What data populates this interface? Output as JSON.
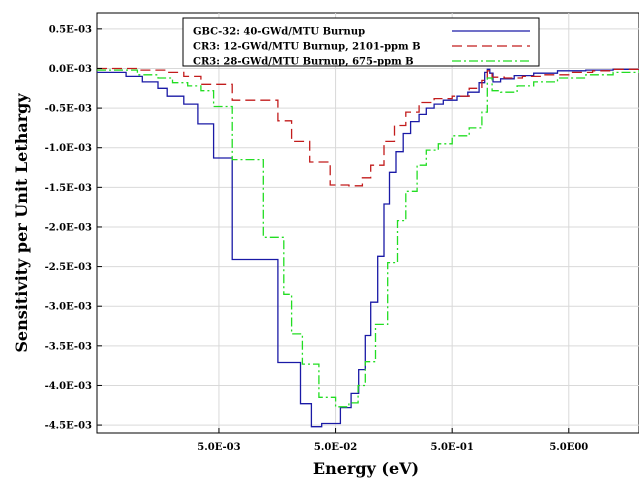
{
  "chart_data": {
    "type": "line",
    "title": "",
    "xlabel": "Energy (eV)",
    "ylabel": "Sensitivity per Unit Lethargy",
    "x_scale": "log",
    "xlim": [
      0.00045,
      20
    ],
    "ylim": [
      -0.0046,
      0.0007
    ],
    "grid": true,
    "legend_position": "top-center",
    "x_ticks": [
      {
        "value": 0.005,
        "label": "5.0E-03"
      },
      {
        "value": 0.05,
        "label": "5.0E-02"
      },
      {
        "value": 0.5,
        "label": "5.0E-01"
      },
      {
        "value": 5,
        "label": "5.0E00"
      }
    ],
    "y_ticks": [
      {
        "value": 0.0005,
        "label": "0.5E-03"
      },
      {
        "value": 0.0,
        "label": "0.0E-03"
      },
      {
        "value": -0.0005,
        "label": "-0.5E-03"
      },
      {
        "value": -0.001,
        "label": "-1.0E-03"
      },
      {
        "value": -0.0015,
        "label": "-1.5E-03"
      },
      {
        "value": -0.002,
        "label": "-2.0E-03"
      },
      {
        "value": -0.0025,
        "label": "-2.5E-03"
      },
      {
        "value": -0.003,
        "label": "-3.0E-03"
      },
      {
        "value": -0.0035,
        "label": "-3.5E-03"
      },
      {
        "value": -0.004,
        "label": "-4.0E-03"
      },
      {
        "value": -0.0045,
        "label": "-4.5E-03"
      }
    ],
    "series": [
      {
        "name": "GBC-32: 40-GWd/MTU Burnup",
        "color": "#1a1aa6",
        "dash": "solid",
        "x": [
          0.00045,
          0.0008,
          0.0011,
          0.0015,
          0.0018,
          0.0025,
          0.0033,
          0.0045,
          0.0065,
          0.016,
          0.025,
          0.031,
          0.038,
          0.055,
          0.068,
          0.079,
          0.09,
          0.1,
          0.115,
          0.13,
          0.145,
          0.165,
          0.19,
          0.22,
          0.26,
          0.3,
          0.35,
          0.42,
          0.55,
          0.68,
          0.85,
          0.95,
          1.0,
          1.05,
          1.12,
          1.3,
          1.7,
          2.5,
          4.0,
          7.0,
          12.0,
          20.0
        ],
        "y": [
          -5e-05,
          -0.0001,
          -0.00017,
          -0.00025,
          -0.00035,
          -0.00045,
          -0.0007,
          -0.00113,
          -0.00241,
          -0.00371,
          -0.00423,
          -0.00452,
          -0.00448,
          -0.00428,
          -0.0041,
          -0.0038,
          -0.00337,
          -0.00295,
          -0.00237,
          -0.00171,
          -0.00131,
          -0.00105,
          -0.00082,
          -0.00067,
          -0.00058,
          -0.0005,
          -0.00045,
          -0.0004,
          -0.00035,
          -0.0003,
          -0.00018,
          -5e-05,
          -1e-05,
          -6e-05,
          -0.00017,
          -0.00013,
          -9e-05,
          -6e-05,
          -3e-05,
          -2e-05,
          -1e-05,
          0.0
        ]
      },
      {
        "name": "CR3: 12-GWd/MTU Burnup, 2101-ppm B",
        "color": "#c21c1c",
        "dash": "10,5",
        "x": [
          0.00045,
          0.001,
          0.0018,
          0.0025,
          0.0035,
          0.0065,
          0.016,
          0.021,
          0.03,
          0.045,
          0.065,
          0.085,
          0.1,
          0.13,
          0.16,
          0.2,
          0.26,
          0.35,
          0.5,
          0.7,
          0.9,
          1.0,
          1.1,
          1.4,
          2.0,
          3.0,
          5.0,
          8.0,
          12.0,
          20.0
        ],
        "y": [
          0.0,
          -2e-05,
          -5e-05,
          -0.0001,
          -0.0002,
          -0.0004,
          -0.00066,
          -0.00092,
          -0.00118,
          -0.00147,
          -0.00148,
          -0.00138,
          -0.00122,
          -0.00092,
          -0.00072,
          -0.00055,
          -0.00043,
          -0.00038,
          -0.00035,
          -0.00025,
          -0.00015,
          -3e-05,
          -0.00011,
          -0.00012,
          -0.0001,
          -8e-05,
          -5e-05,
          -3e-05,
          -1e-05,
          0.0
        ]
      },
      {
        "name": "CR3: 28-GWd/MTU Burnup, 675-ppm B",
        "color": "#22dd22",
        "dash": "9,3,2,3",
        "x": [
          0.00045,
          0.001,
          0.0015,
          0.002,
          0.0027,
          0.0035,
          0.0045,
          0.0065,
          0.012,
          0.018,
          0.021,
          0.026,
          0.036,
          0.05,
          0.065,
          0.078,
          0.09,
          0.11,
          0.14,
          0.17,
          0.2,
          0.25,
          0.3,
          0.38,
          0.5,
          0.7,
          0.9,
          1.0,
          1.1,
          1.3,
          1.8,
          2.5,
          4.0,
          7.0,
          12.0,
          20.0
        ],
        "y": [
          -2e-05,
          -8e-05,
          -0.00012,
          -0.00018,
          -0.00022,
          -0.00028,
          -0.00048,
          -0.00115,
          -0.00213,
          -0.00285,
          -0.00335,
          -0.00373,
          -0.00415,
          -0.00427,
          -0.00422,
          -0.004,
          -0.0037,
          -0.00323,
          -0.00245,
          -0.00192,
          -0.00155,
          -0.00122,
          -0.00103,
          -0.00095,
          -0.00085,
          -0.00075,
          -0.00055,
          -0.00012,
          -0.00028,
          -0.0003,
          -0.00022,
          -0.00017,
          -0.00012,
          -8e-05,
          -5e-05,
          -2e-05
        ]
      }
    ]
  }
}
